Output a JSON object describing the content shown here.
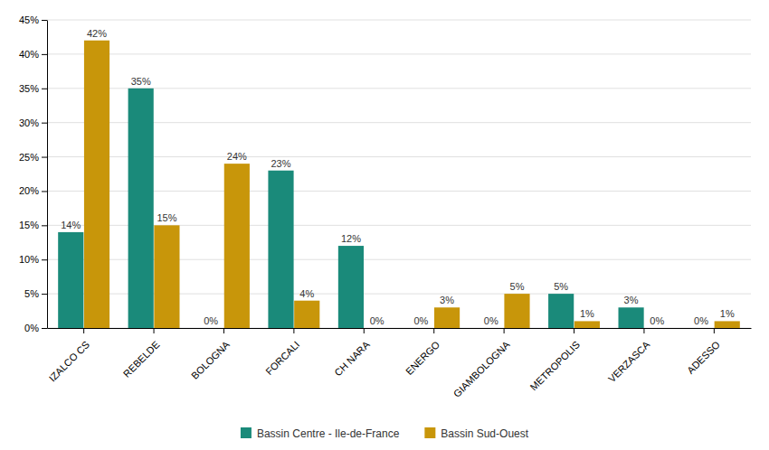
{
  "chart_data": {
    "type": "bar",
    "categories": [
      "IZALCO CS",
      "REBELDE",
      "BOLOGNA",
      "FORCALI",
      "CH NARA",
      "ENERGO",
      "GIAMBOLOGNA",
      "METROPOLIS",
      "VERZASCA",
      "ADESSO"
    ],
    "series": [
      {
        "name": "Bassin Centre - Ile-de-France",
        "color": "#1a8a7a",
        "values": [
          14,
          35,
          0,
          23,
          12,
          0,
          0,
          5,
          3,
          0
        ],
        "value_labels": [
          "14%",
          "35%",
          "0%",
          "23%",
          "12%",
          "0%",
          "0%",
          "5%",
          "3%",
          "0%"
        ]
      },
      {
        "name": "Bassin Sud-Ouest",
        "color": "#c8960a",
        "values": [
          42,
          15,
          24,
          4,
          0,
          3,
          5,
          1,
          0,
          1
        ],
        "value_labels": [
          "42%",
          "15%",
          "24%",
          "4%",
          "0%",
          "3%",
          "5%",
          "1%",
          "0%",
          "1%"
        ]
      }
    ],
    "ylim": [
      0,
      45
    ],
    "yticks": [
      {
        "value": 0,
        "label": "0%"
      },
      {
        "value": 5,
        "label": "5%"
      },
      {
        "value": 10,
        "label": "10%"
      },
      {
        "value": 15,
        "label": "15%"
      },
      {
        "value": 20,
        "label": "20%"
      },
      {
        "value": 25,
        "label": "25%"
      },
      {
        "value": 30,
        "label": "30%"
      },
      {
        "value": 35,
        "label": "35%"
      },
      {
        "value": 40,
        "label": "40%"
      },
      {
        "value": 45,
        "label": "45%"
      }
    ],
    "grid": true,
    "data_labels": true,
    "legend": "bottom"
  }
}
